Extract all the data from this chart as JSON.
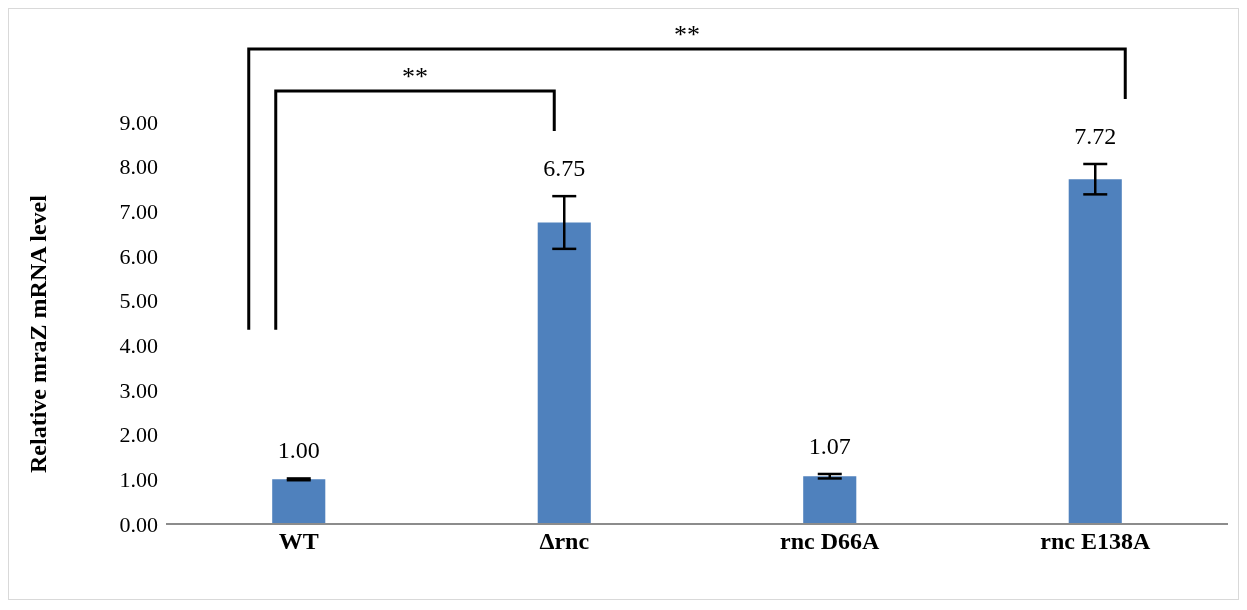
{
  "chart_data": {
    "type": "bar",
    "ylabel": "Relative mraZ mRNA level",
    "categories": [
      "WT",
      "Δrnc",
      "rnc D66A",
      "rnc E138A"
    ],
    "values": [
      1.0,
      6.75,
      1.07,
      7.72
    ],
    "color": "#4f81bd",
    "errors": [
      0.02,
      0.59,
      0.05,
      0.34
    ],
    "value_labels": [
      "1.00",
      "6.75",
      "1.07",
      "7.72"
    ],
    "ylim": [
      0,
      9
    ],
    "yticks": [
      {
        "value": 0,
        "label": "0.00"
      },
      {
        "value": 1,
        "label": "1.00"
      },
      {
        "value": 2,
        "label": "2.00"
      },
      {
        "value": 3,
        "label": "3.00"
      },
      {
        "value": 4,
        "label": "4.00"
      },
      {
        "value": 5,
        "label": "5.00"
      },
      {
        "value": 6,
        "label": "6.00"
      },
      {
        "value": 7,
        "label": "7.00"
      },
      {
        "value": 8,
        "label": "8.00"
      },
      {
        "value": 9,
        "label": "9.00"
      }
    ],
    "grid": false,
    "legend": false,
    "annotations": [
      "**",
      "**"
    ]
  }
}
